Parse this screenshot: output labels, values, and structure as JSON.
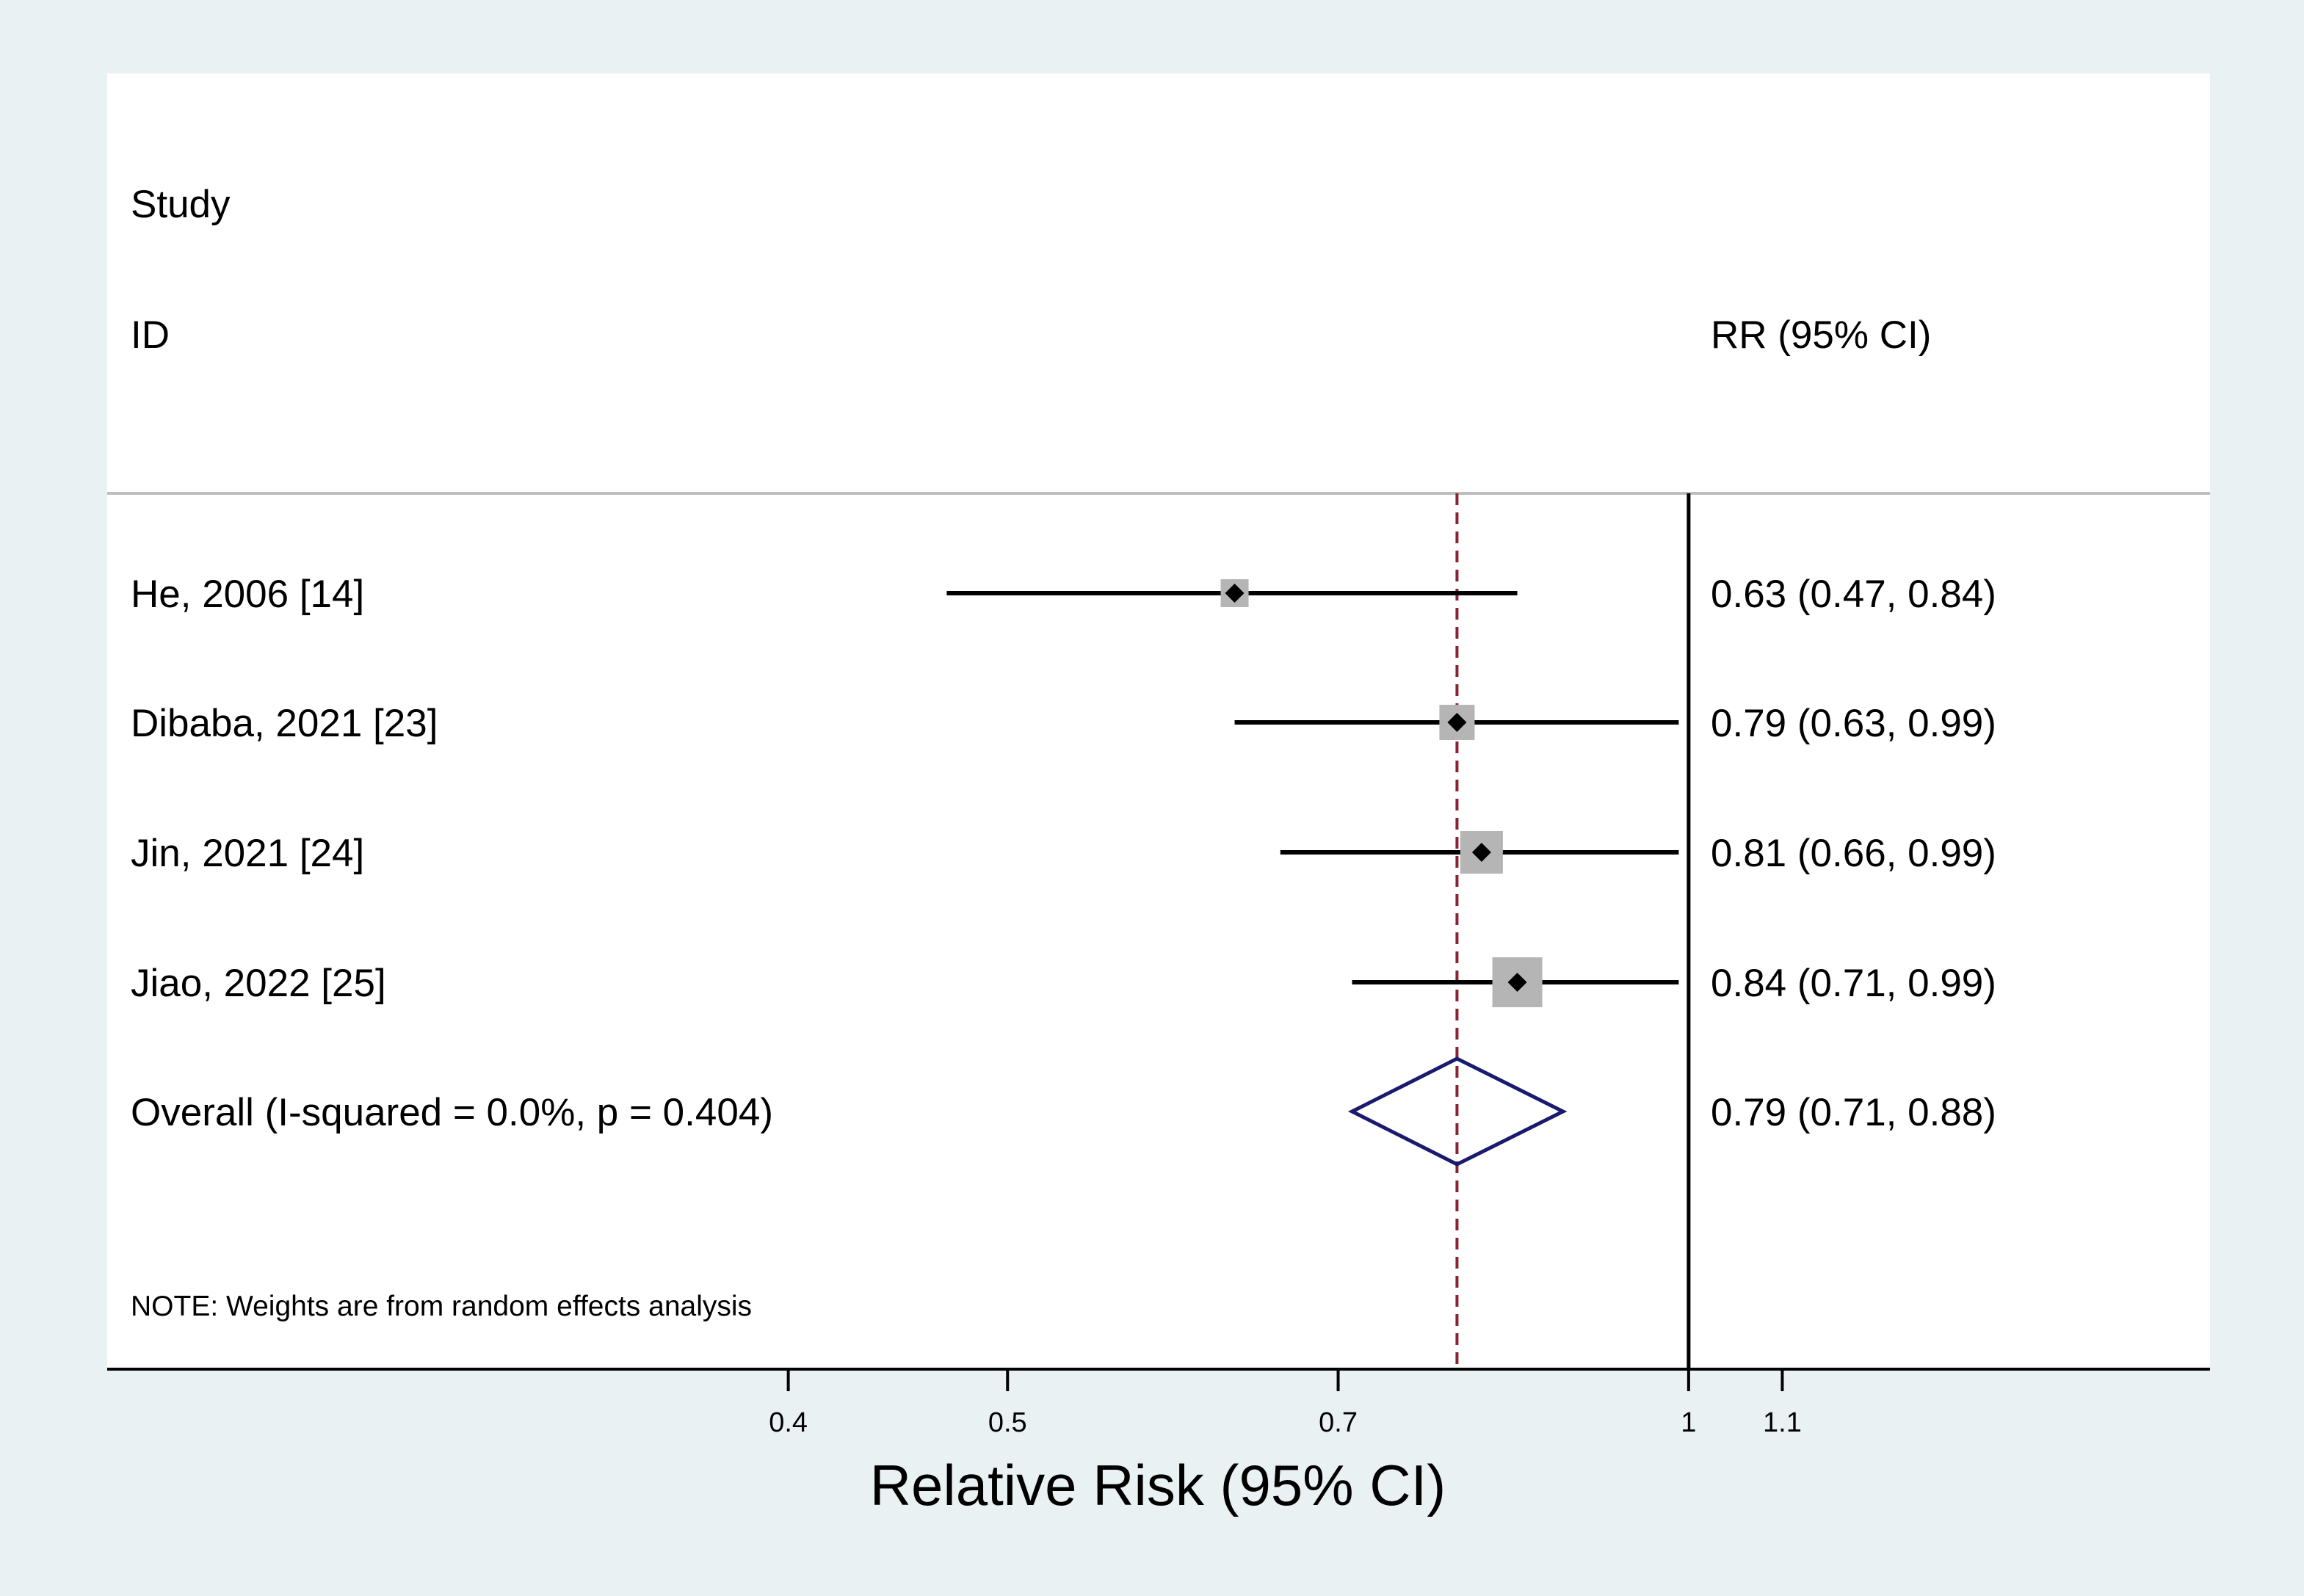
{
  "chart_data": {
    "type": "forest",
    "header": {
      "col1_line1": "Study",
      "col1_line2": "ID",
      "col2": "RR (95% CI)"
    },
    "studies": [
      {
        "label": "He, 2006 [14]",
        "rr": 0.63,
        "lo": 0.47,
        "hi": 0.84,
        "rr_text": "0.63 (0.47, 0.84)",
        "weight_rank": 1
      },
      {
        "label": "Dibaba, 2021 [23]",
        "rr": 0.79,
        "lo": 0.63,
        "hi": 0.99,
        "rr_text": "0.79 (0.63, 0.99)",
        "weight_rank": 2
      },
      {
        "label": "Jin, 2021 [24]",
        "rr": 0.81,
        "lo": 0.66,
        "hi": 0.99,
        "rr_text": "0.81 (0.66, 0.99)",
        "weight_rank": 3
      },
      {
        "label": "Jiao, 2022 [25]",
        "rr": 0.84,
        "lo": 0.71,
        "hi": 0.99,
        "rr_text": "0.84 (0.71, 0.99)",
        "weight_rank": 4
      }
    ],
    "overall": {
      "label": "Overall  (I-squared = 0.0%, p = 0.404)",
      "rr": 0.79,
      "lo": 0.71,
      "hi": 0.88,
      "rr_text": "0.79 (0.71, 0.88)"
    },
    "note": "NOTE: Weights are from random effects analysis",
    "x_axis": {
      "label": "Relative Risk (95% CI)",
      "scale": "log",
      "ticks": [
        0.4,
        0.5,
        0.7,
        1,
        1.1
      ],
      "range": [
        0.2,
        1.7
      ],
      "null_line": 1
    },
    "colors": {
      "outer_background": "#eaf1f3",
      "plot_background": "#ffffff",
      "ci_line": "#000000",
      "weight_box": "#b5b5b5",
      "point_marker": "#000000",
      "overall_diamond": "#1a1a6e",
      "overall_line": "#8b2232",
      "null_line": "#000000",
      "separator": "#bdbdbd"
    }
  }
}
